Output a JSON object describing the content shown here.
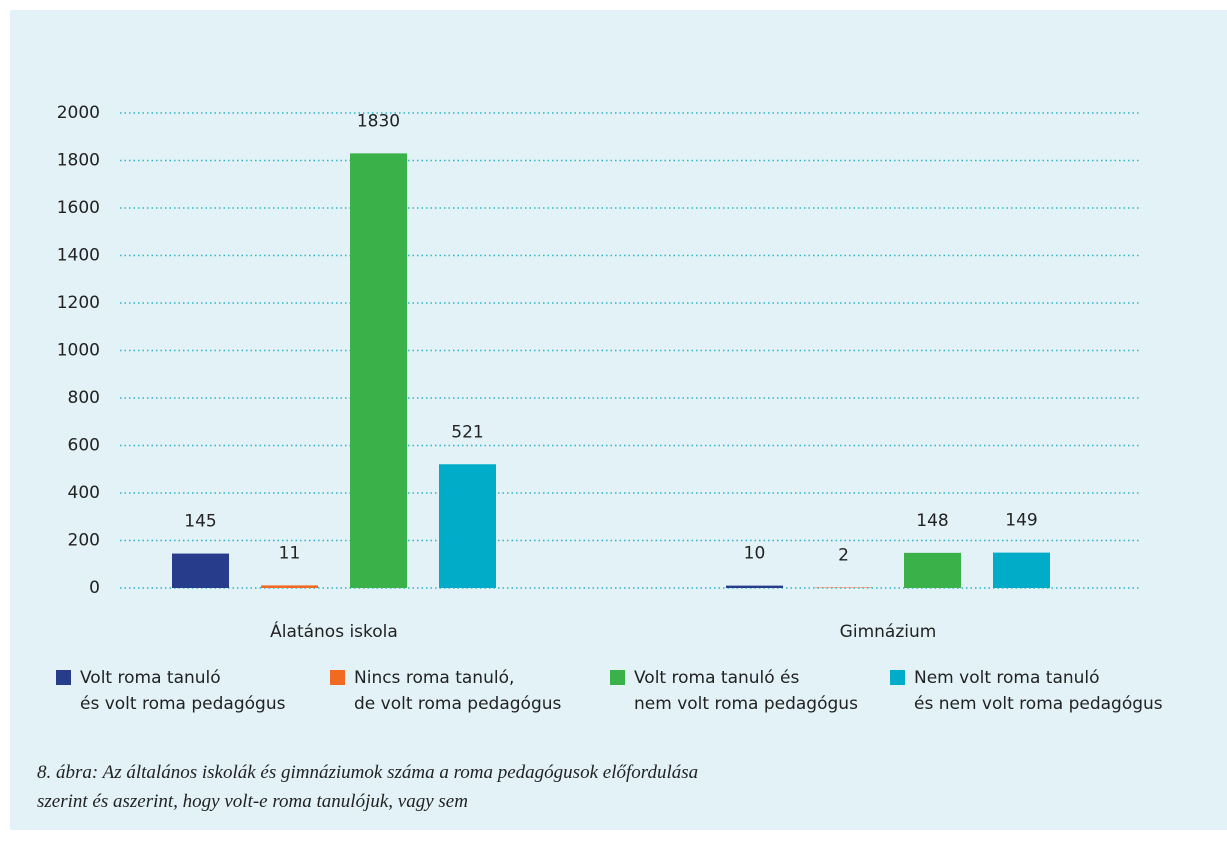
{
  "chart_data": {
    "type": "bar",
    "categories": [
      "Álatános iskola",
      "Gimnázium"
    ],
    "series": [
      {
        "name": "Volt roma tanuló\n és  volt roma pedagógus",
        "color": "#283c8c",
        "values": [
          145,
          10
        ]
      },
      {
        "name": "Nincs roma tanuló,\nde volt roma pedagógus",
        "color": "#f26a22",
        "values": [
          11,
          2
        ]
      },
      {
        "name": "Volt roma tanuló és\nnem volt roma pedagógus",
        "color": "#3bb14a",
        "values": [
          1830,
          148
        ]
      },
      {
        "name": "Nem volt roma tanuló\nés nem volt roma pedagógus",
        "color": "#00acc8",
        "values": [
          521,
          149
        ]
      }
    ],
    "ylim": [
      0,
      2000
    ],
    "yticks": [
      0,
      200,
      400,
      600,
      800,
      1000,
      1200,
      1400,
      1600,
      1800,
      2000
    ],
    "grid": true,
    "legend": "bottom",
    "caption": "8. ábra: Az általános iskolák és gimnáziumok száma a roma pedagógusok előfordulása\nszerint és aszerint, hogy volt-e roma tanulójuk, vagy sem"
  }
}
